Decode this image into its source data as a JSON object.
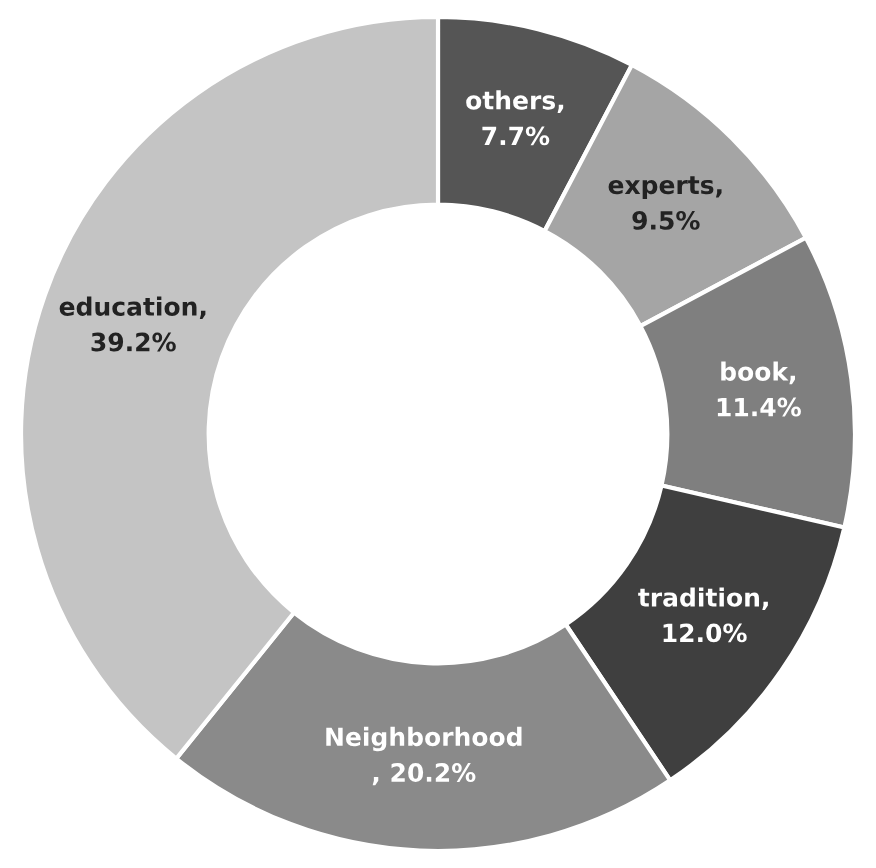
{
  "chart_data": {
    "type": "donut",
    "categories": [
      "others",
      "experts",
      "book",
      "tradition",
      "Neighborhood",
      "education"
    ],
    "values": [
      7.7,
      9.5,
      11.4,
      12.0,
      20.2,
      39.2
    ],
    "colors": [
      "#555555",
      "#a5a5a5",
      "#7f7f7f",
      "#3f3f3f",
      "#8a8a8a",
      "#c4c4c4"
    ],
    "value_labels": [
      ",\n7.7%",
      ",\n9.5%",
      ",\n11.4%",
      ",\n12.0%",
      "\n, 20.2%",
      ",\n39.2%"
    ],
    "legend": false
  }
}
